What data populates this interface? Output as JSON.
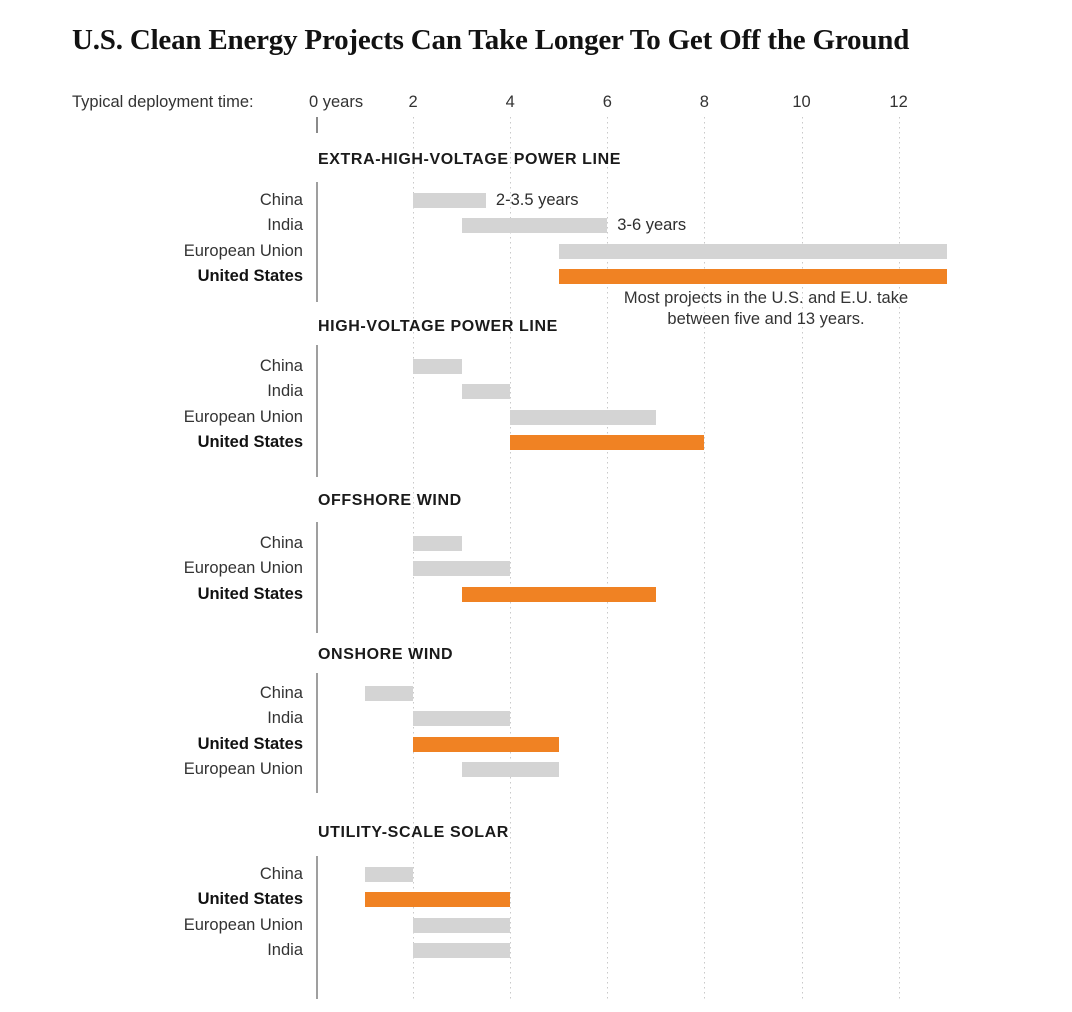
{
  "title": "U.S. Clean Energy Projects Can Take Longer To Get Off the Ground",
  "axis": {
    "label": "Typical deployment time:",
    "ticks": [
      {
        "value": 0,
        "label": "0 years"
      },
      {
        "value": 2,
        "label": "2"
      },
      {
        "value": 4,
        "label": "4"
      },
      {
        "value": 6,
        "label": "6"
      },
      {
        "value": 8,
        "label": "8"
      },
      {
        "value": 10,
        "label": "10"
      },
      {
        "value": 12,
        "label": "12"
      }
    ]
  },
  "colors": {
    "us_bar": "#f08223",
    "other_bar": "#d4d4d4",
    "grid": "#c9c9c9",
    "baseline": "#9f9f9f",
    "text": "#333333",
    "heading": "#1a1a1a"
  },
  "chart_data": {
    "type": "bar",
    "title": "U.S. Clean Energy Projects Can Take Longer To Get Off the Ground",
    "xlabel": "Typical deployment time (years)",
    "ylabel": "",
    "xlim": [
      0,
      13
    ],
    "grid": "vertical-dotted",
    "legend": "none",
    "units": "years",
    "sections": [
      {
        "heading": "EXTRA-HIGH-VOLTAGE POWER LINE",
        "rows": [
          {
            "label": "China",
            "start": 2,
            "end": 3.5,
            "highlight": false,
            "annotation": "2-3.5 years"
          },
          {
            "label": "India",
            "start": 3,
            "end": 6,
            "highlight": false,
            "annotation": "3-6 years"
          },
          {
            "label": "European Union",
            "start": 5,
            "end": 13,
            "highlight": false
          },
          {
            "label": "United States",
            "start": 5,
            "end": 13,
            "highlight": true
          }
        ],
        "note_lines": [
          "Most projects in the U.S. and E.U. take",
          "between five and 13 years."
        ]
      },
      {
        "heading": "HIGH-VOLTAGE POWER LINE",
        "rows": [
          {
            "label": "China",
            "start": 2,
            "end": 3,
            "highlight": false
          },
          {
            "label": "India",
            "start": 3,
            "end": 4,
            "highlight": false
          },
          {
            "label": "European Union",
            "start": 4,
            "end": 7,
            "highlight": false
          },
          {
            "label": "United States",
            "start": 4,
            "end": 8,
            "highlight": true
          }
        ]
      },
      {
        "heading": "OFFSHORE WIND",
        "rows": [
          {
            "label": "China",
            "start": 2,
            "end": 3,
            "highlight": false
          },
          {
            "label": "European Union",
            "start": 2,
            "end": 4,
            "highlight": false
          },
          {
            "label": "United States",
            "start": 3,
            "end": 7,
            "highlight": true
          }
        ]
      },
      {
        "heading": "ONSHORE WIND",
        "rows": [
          {
            "label": "China",
            "start": 1,
            "end": 2,
            "highlight": false
          },
          {
            "label": "India",
            "start": 2,
            "end": 4,
            "highlight": false
          },
          {
            "label": "United States",
            "start": 2,
            "end": 5,
            "highlight": true
          },
          {
            "label": "European Union",
            "start": 3,
            "end": 5,
            "highlight": false
          }
        ]
      },
      {
        "heading": "UTILITY-SCALE SOLAR",
        "rows": [
          {
            "label": "China",
            "start": 1,
            "end": 2,
            "highlight": false
          },
          {
            "label": "United States",
            "start": 1,
            "end": 4,
            "highlight": true
          },
          {
            "label": "European Union",
            "start": 2,
            "end": 4,
            "highlight": false
          },
          {
            "label": "India",
            "start": 2,
            "end": 4,
            "highlight": false
          }
        ]
      }
    ]
  }
}
